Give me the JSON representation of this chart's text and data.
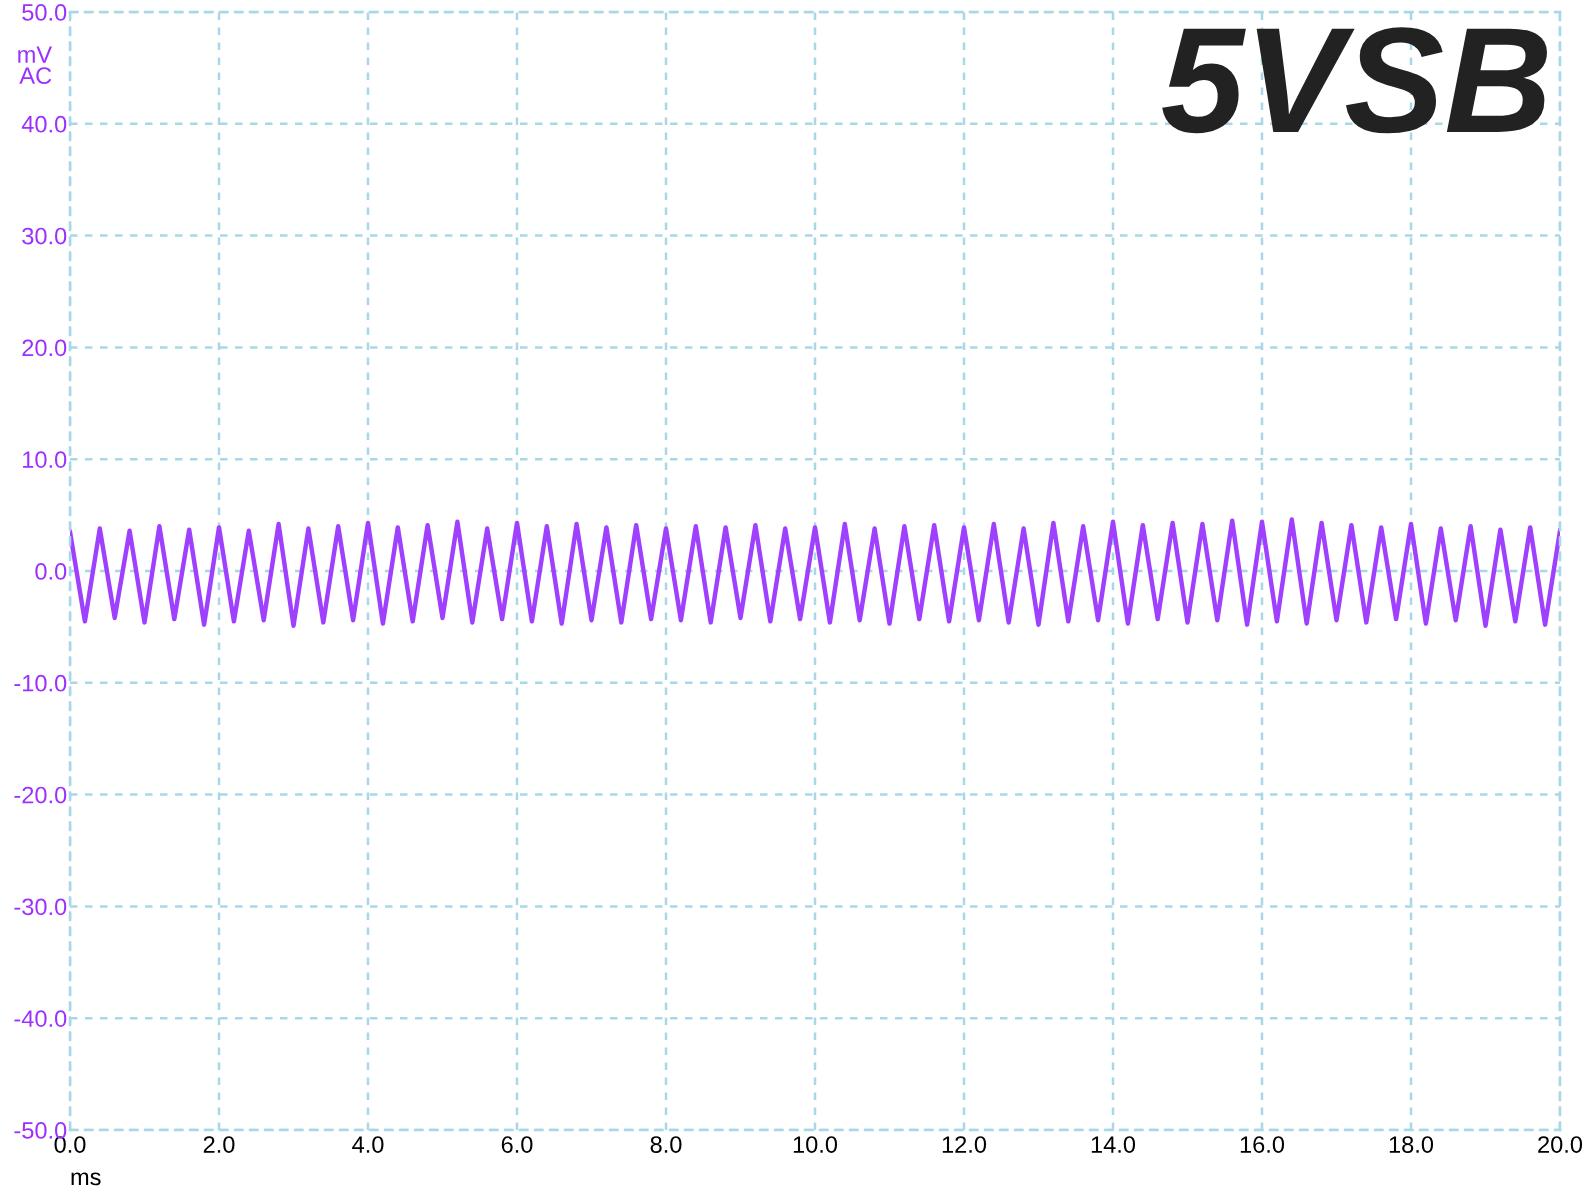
{
  "chart_data": {
    "type": "line",
    "title": "5VSB",
    "xlabel": "ms",
    "ylabel": "mV\nAC",
    "x": [
      0.0,
      0.2,
      0.4,
      0.6,
      0.8,
      1.0,
      1.2,
      1.4,
      1.6,
      1.8,
      2.0,
      2.2,
      2.4,
      2.6,
      2.8,
      3.0,
      3.2,
      3.4,
      3.6,
      3.8,
      4.0,
      4.2,
      4.4,
      4.6,
      4.8,
      5.0,
      5.2,
      5.4,
      5.6,
      5.8,
      6.0,
      6.2,
      6.4,
      6.6,
      6.8,
      7.0,
      7.2,
      7.4,
      7.6,
      7.8,
      8.0,
      8.2,
      8.4,
      8.6,
      8.8,
      9.0,
      9.2,
      9.4,
      9.6,
      9.8,
      10.0,
      10.2,
      10.4,
      10.6,
      10.8,
      11.0,
      11.2,
      11.4,
      11.6,
      11.8,
      12.0,
      12.2,
      12.4,
      12.6,
      12.8,
      13.0,
      13.2,
      13.4,
      13.6,
      13.8,
      14.0,
      14.2,
      14.4,
      14.6,
      14.8,
      15.0,
      15.2,
      15.4,
      15.6,
      15.8,
      16.0,
      16.2,
      16.4,
      16.6,
      16.8,
      17.0,
      17.2,
      17.4,
      17.6,
      17.8,
      18.0,
      18.2,
      18.4,
      18.6,
      18.8,
      19.0,
      19.2,
      19.4,
      19.6,
      19.8,
      20.0
    ],
    "series": [
      {
        "color": "#a040ff",
        "values": [
          3.5,
          -4.5,
          3.8,
          -4.2,
          3.6,
          -4.6,
          4.0,
          -4.3,
          3.7,
          -4.8,
          3.9,
          -4.5,
          3.6,
          -4.4,
          4.2,
          -4.9,
          3.8,
          -4.6,
          4.0,
          -4.4,
          4.3,
          -4.7,
          3.9,
          -4.5,
          4.1,
          -4.2,
          4.4,
          -4.6,
          3.8,
          -4.3,
          4.3,
          -4.5,
          4.0,
          -4.7,
          4.2,
          -4.4,
          3.9,
          -4.6,
          4.1,
          -4.3,
          3.8,
          -4.4,
          4.0,
          -4.6,
          3.9,
          -4.2,
          4.1,
          -4.5,
          3.8,
          -4.3,
          3.9,
          -4.6,
          4.2,
          -4.4,
          3.8,
          -4.7,
          4.0,
          -4.3,
          4.1,
          -4.5,
          3.9,
          -4.4,
          4.2,
          -4.6,
          3.8,
          -4.8,
          4.3,
          -4.5,
          4.0,
          -4.4,
          4.4,
          -4.7,
          4.1,
          -4.3,
          4.3,
          -4.6,
          4.2,
          -4.4,
          4.5,
          -4.8,
          4.4,
          -4.5,
          4.6,
          -4.7,
          4.3,
          -4.4,
          4.1,
          -4.6,
          3.9,
          -4.3,
          4.2,
          -4.7,
          3.8,
          -4.4,
          4.0,
          -4.9,
          3.7,
          -4.5,
          3.9,
          -4.8,
          3.6
        ]
      }
    ],
    "xlim": [
      0.0,
      20.0
    ],
    "ylim": [
      -50.0,
      50.0
    ],
    "xticks": [
      {
        "value": 0,
        "label": "0.0"
      },
      {
        "value": 2,
        "label": "2.0"
      },
      {
        "value": 4,
        "label": "4.0"
      },
      {
        "value": 6,
        "label": "6.0"
      },
      {
        "value": 8,
        "label": "8.0"
      },
      {
        "value": 10,
        "label": "10.0"
      },
      {
        "value": 12,
        "label": "12.0"
      },
      {
        "value": 14,
        "label": "14.0"
      },
      {
        "value": 16,
        "label": "16.0"
      },
      {
        "value": 18,
        "label": "18.0"
      },
      {
        "value": 20,
        "label": "20.0"
      }
    ],
    "yticks": [
      {
        "value": -50,
        "label": "-50.0"
      },
      {
        "value": -40,
        "label": "-40.0"
      },
      {
        "value": -30,
        "label": "-30.0"
      },
      {
        "value": -20,
        "label": "-20.0"
      },
      {
        "value": -10,
        "label": "-10.0"
      },
      {
        "value": 0,
        "label": "0.0"
      },
      {
        "value": 10,
        "label": "10.0"
      },
      {
        "value": 20,
        "label": "20.0"
      },
      {
        "value": 30,
        "label": "30.0"
      },
      {
        "value": 40,
        "label": "40.0"
      },
      {
        "value": 50,
        "label": "50.0"
      }
    ],
    "grid": true,
    "line_style": "solid",
    "marker": "none"
  }
}
